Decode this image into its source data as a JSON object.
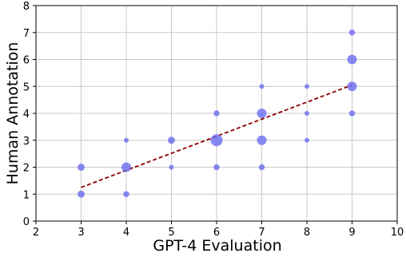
{
  "chart_data": {
    "type": "scatter",
    "xlabel": "GPT-4 Evaluation",
    "ylabel": "Human Annotation",
    "xlim": [
      2,
      10
    ],
    "ylim": [
      0,
      8
    ],
    "x_ticks": [
      "2",
      "3",
      "4",
      "5",
      "6",
      "7",
      "8",
      "9",
      "10"
    ],
    "y_ticks": [
      "0",
      "1",
      "2",
      "3",
      "4",
      "5",
      "6",
      "7",
      "8"
    ],
    "grid": true,
    "point_color": "#6b6bf0",
    "trend_color": "#8b0000",
    "points": [
      {
        "x": 3,
        "y": 1,
        "size": 2
      },
      {
        "x": 3,
        "y": 2,
        "size": 2
      },
      {
        "x": 4,
        "y": 1,
        "size": 1.5
      },
      {
        "x": 4,
        "y": 2,
        "size": 3
      },
      {
        "x": 4,
        "y": 3,
        "size": 1
      },
      {
        "x": 5,
        "y": 2,
        "size": 1
      },
      {
        "x": 5,
        "y": 3,
        "size": 2
      },
      {
        "x": 6,
        "y": 2,
        "size": 1.5
      },
      {
        "x": 6,
        "y": 3,
        "size": 4
      },
      {
        "x": 6,
        "y": 4,
        "size": 1.5
      },
      {
        "x": 7,
        "y": 2,
        "size": 1.5
      },
      {
        "x": 7,
        "y": 3,
        "size": 3
      },
      {
        "x": 7,
        "y": 4,
        "size": 3
      },
      {
        "x": 7,
        "y": 5,
        "size": 1
      },
      {
        "x": 8,
        "y": 3,
        "size": 1
      },
      {
        "x": 8,
        "y": 4,
        "size": 1
      },
      {
        "x": 8,
        "y": 5,
        "size": 1
      },
      {
        "x": 9,
        "y": 4,
        "size": 1.5
      },
      {
        "x": 9,
        "y": 5,
        "size": 3
      },
      {
        "x": 9,
        "y": 6,
        "size": 3
      },
      {
        "x": 9,
        "y": 7,
        "size": 1.5
      }
    ],
    "trendline": {
      "x": [
        3,
        9
      ],
      "y": [
        1.25,
        5.05
      ]
    }
  }
}
